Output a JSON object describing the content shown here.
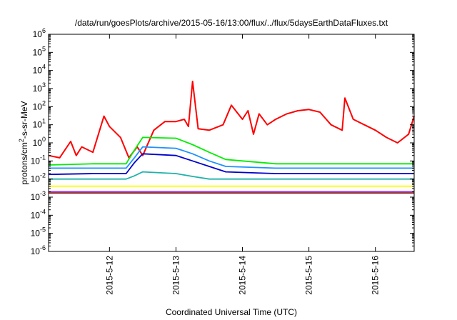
{
  "chart_data": {
    "type": "line",
    "title": "/data/run/goesPlots/archive/2015-05-16/13:00/flux/../flux/5daysEarthDataFluxes.txt",
    "xlabel": "Coordinated Universal Time (UTC)",
    "ylabel_parts": {
      "base": "protons/cm",
      "sup": "2",
      "rest": "-s-sr-MeV"
    },
    "yscale": "log",
    "ylim": [
      1e-06,
      1000000.0
    ],
    "y_ticks": [
      {
        "value": 1e-06,
        "base": "10",
        "exp": "-6"
      },
      {
        "value": 1e-05,
        "base": "10",
        "exp": "-5"
      },
      {
        "value": 0.0001,
        "base": "10",
        "exp": "-4"
      },
      {
        "value": 0.001,
        "base": "10",
        "exp": "-3"
      },
      {
        "value": 0.01,
        "base": "10",
        "exp": "-2"
      },
      {
        "value": 0.1,
        "base": "10",
        "exp": "-1"
      },
      {
        "value": 1,
        "base": "10",
        "exp": "0"
      },
      {
        "value": 10,
        "base": "10",
        "exp": "1"
      },
      {
        "value": 100,
        "base": "10",
        "exp": "2"
      },
      {
        "value": 1000,
        "base": "10",
        "exp": "3"
      },
      {
        "value": 10000,
        "base": "10",
        "exp": "4"
      },
      {
        "value": 100000,
        "base": "10",
        "exp": "5"
      },
      {
        "value": 1000000,
        "base": "10",
        "exp": "6"
      }
    ],
    "xlim": [
      "2015-05-11 02:00",
      "2015-05-16 14:00"
    ],
    "x_ticks": [
      "2015-5-12",
      "2015-5-13",
      "2015-5-14",
      "2015-5-15",
      "2015-5-16"
    ],
    "grid": false,
    "series": [
      {
        "color": "#ff0000",
        "x": [
          "2015-05-11 02:00",
          "2015-05-11 06:00",
          "2015-05-11 10:00",
          "2015-05-11 12:00",
          "2015-05-11 14:00",
          "2015-05-11 18:00",
          "2015-05-11 22:00",
          "2015-05-12 00:00",
          "2015-05-12 04:00",
          "2015-05-12 07:00",
          "2015-05-12 10:00",
          "2015-05-12 12:00",
          "2015-05-12 16:00",
          "2015-05-12 20:00",
          "2015-05-13 00:00",
          "2015-05-13 03:00",
          "2015-05-13 04:30",
          "2015-05-13 06:00",
          "2015-05-13 08:00",
          "2015-05-13 12:00",
          "2015-05-13 17:00",
          "2015-05-13 20:00",
          "2015-05-14 00:00",
          "2015-05-14 02:00",
          "2015-05-14 04:00",
          "2015-05-14 06:00",
          "2015-05-14 09:00",
          "2015-05-14 12:00",
          "2015-05-14 16:00",
          "2015-05-14 20:00",
          "2015-05-15 00:00",
          "2015-05-15 04:00",
          "2015-05-15 08:00",
          "2015-05-15 12:00",
          "2015-05-15 13:00",
          "2015-05-15 16:00",
          "2015-05-15 20:00",
          "2015-05-16 00:00",
          "2015-05-16 04:00",
          "2015-05-16 08:00",
          "2015-05-16 12:00",
          "2015-05-16 14:00"
        ],
        "values": [
          0.2,
          0.15,
          1.2,
          0.2,
          0.6,
          0.3,
          30,
          8,
          2,
          0.15,
          0.6,
          0.2,
          5,
          15,
          15,
          20,
          8,
          2500,
          6,
          5,
          10,
          120,
          20,
          60,
          3,
          40,
          10,
          20,
          40,
          60,
          70,
          50,
          10,
          5,
          300,
          20,
          10,
          5,
          2,
          1,
          3,
          30
        ]
      },
      {
        "color": "#00ee00",
        "x": [
          "2015-05-11 02:00",
          "2015-05-11 18:00",
          "2015-05-12 06:00",
          "2015-05-12 09:00",
          "2015-05-12 12:00",
          "2015-05-13 00:00",
          "2015-05-13 06:00",
          "2015-05-13 12:00",
          "2015-05-13 18:00",
          "2015-05-14 12:00",
          "2015-05-15 12:00",
          "2015-05-16 14:00"
        ],
        "values": [
          0.06,
          0.07,
          0.07,
          0.4,
          2,
          1.8,
          0.8,
          0.3,
          0.12,
          0.07,
          0.07,
          0.07
        ]
      },
      {
        "color": "#1e90ff",
        "x": [
          "2015-05-11 02:00",
          "2015-05-11 18:00",
          "2015-05-12 06:00",
          "2015-05-12 09:00",
          "2015-05-12 12:00",
          "2015-05-13 00:00",
          "2015-05-13 06:00",
          "2015-05-13 12:00",
          "2015-05-13 18:00",
          "2015-05-14 12:00",
          "2015-05-15 12:00",
          "2015-05-16 14:00"
        ],
        "values": [
          0.04,
          0.04,
          0.04,
          0.15,
          0.6,
          0.5,
          0.25,
          0.1,
          0.05,
          0.04,
          0.04,
          0.04
        ]
      },
      {
        "color": "#0000cc",
        "x": [
          "2015-05-11 02:00",
          "2015-05-11 18:00",
          "2015-05-12 06:00",
          "2015-05-12 09:00",
          "2015-05-12 12:00",
          "2015-05-13 00:00",
          "2015-05-13 06:00",
          "2015-05-13 12:00",
          "2015-05-13 18:00",
          "2015-05-14 12:00",
          "2015-05-15 12:00",
          "2015-05-16 14:00"
        ],
        "values": [
          0.018,
          0.02,
          0.02,
          0.08,
          0.25,
          0.2,
          0.1,
          0.05,
          0.025,
          0.02,
          0.02,
          0.02
        ]
      },
      {
        "color": "#20b2aa",
        "x": [
          "2015-05-11 02:00",
          "2015-05-11 18:00",
          "2015-05-12 06:00",
          "2015-05-12 09:00",
          "2015-05-12 12:00",
          "2015-05-13 00:00",
          "2015-05-13 06:00",
          "2015-05-13 12:00",
          "2015-05-13 18:00",
          "2015-05-14 12:00",
          "2015-05-15 12:00",
          "2015-05-16 14:00"
        ],
        "values": [
          0.01,
          0.01,
          0.01,
          0.015,
          0.025,
          0.02,
          0.014,
          0.01,
          0.01,
          0.01,
          0.01,
          0.01
        ]
      },
      {
        "color": "#ffff00",
        "x": [
          "2015-05-11 02:00",
          "2015-05-12 12:00",
          "2015-05-14 00:00",
          "2015-05-15 12:00",
          "2015-05-16 14:00"
        ],
        "values": [
          0.004,
          0.004,
          0.004,
          0.004,
          0.004
        ]
      },
      {
        "color": "#9b30ff",
        "x": [
          "2015-05-11 02:00",
          "2015-05-12 12:00",
          "2015-05-14 00:00",
          "2015-05-15 12:00",
          "2015-05-16 14:00"
        ],
        "values": [
          0.002,
          0.002,
          0.002,
          0.002,
          0.002
        ]
      },
      {
        "color": "#8b1a1a",
        "x": [
          "2015-05-11 02:00",
          "2015-05-12 12:00",
          "2015-05-14 00:00",
          "2015-05-15 12:00",
          "2015-05-16 14:00"
        ],
        "values": [
          0.0017,
          0.0017,
          0.0017,
          0.0017,
          0.0017
        ]
      }
    ]
  }
}
